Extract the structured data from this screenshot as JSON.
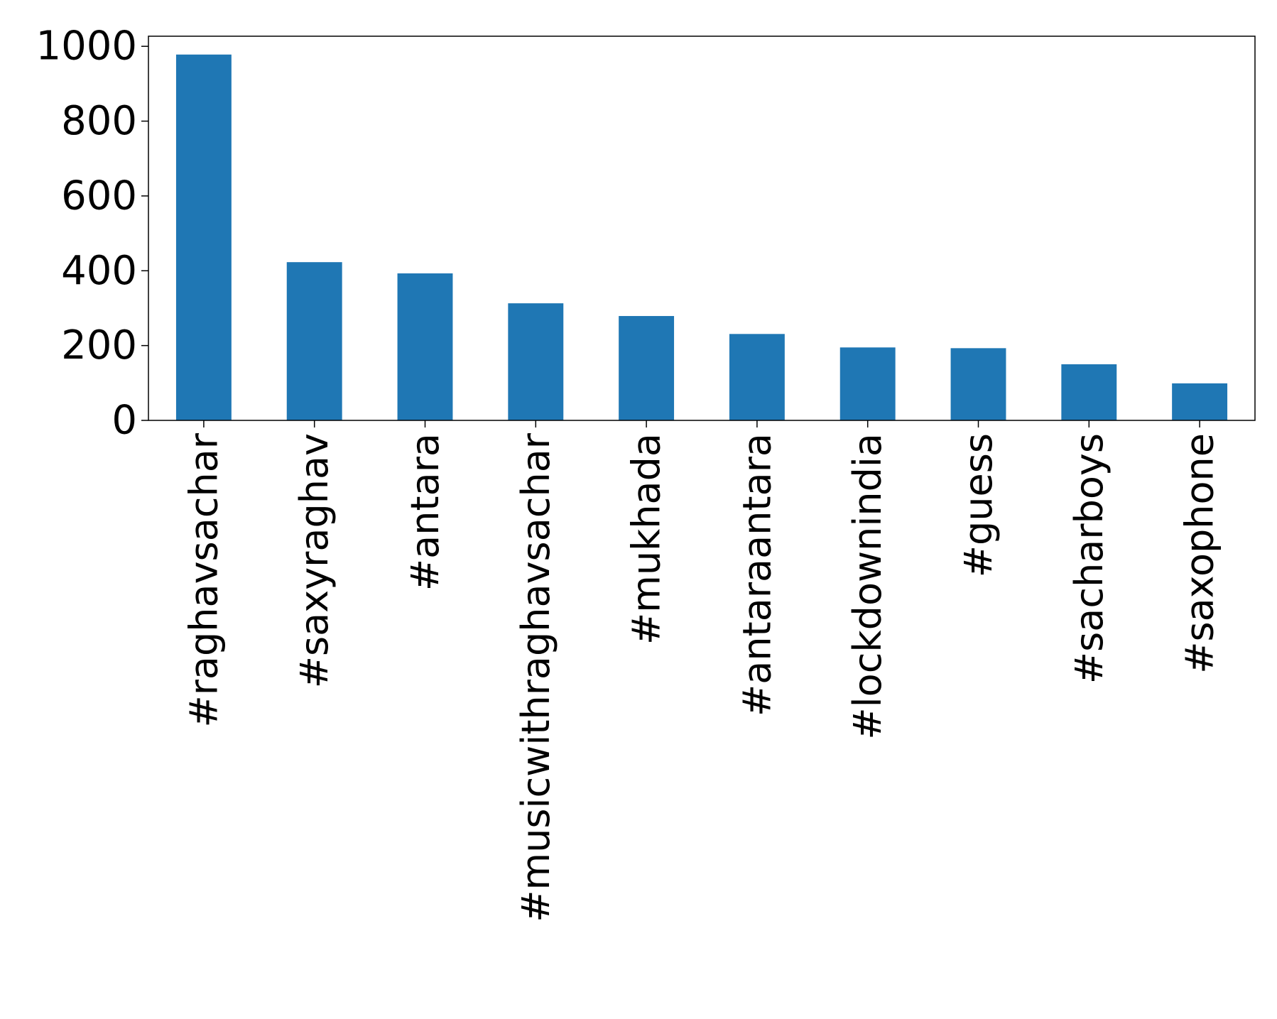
{
  "chart_data": {
    "type": "bar",
    "title": "",
    "xlabel": "",
    "ylabel": "",
    "categories": [
      "#raghavsachar",
      "#saxyraghav",
      "#antara",
      "#musicwithraghavsachar",
      "#mukhada",
      "#antaraantara",
      "#lockdownindia",
      "#guess",
      "#sacharboys",
      "#saxophone"
    ],
    "values": [
      978,
      423,
      393,
      313,
      279,
      231,
      195,
      193,
      150,
      99
    ],
    "ylim": [
      0,
      1027
    ],
    "yticks": [
      0,
      200,
      400,
      600,
      800,
      1000
    ],
    "grid": false,
    "legend": "none",
    "bar_color": "#1f77b4"
  }
}
